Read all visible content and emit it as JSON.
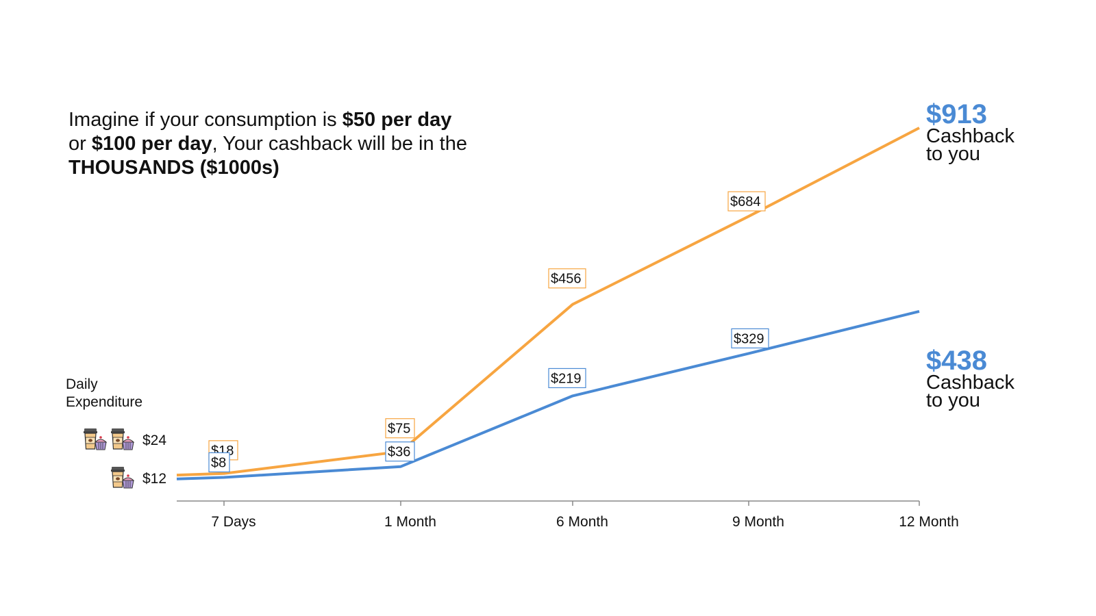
{
  "headline": {
    "line1_pre": "Imagine if your consumption is ",
    "line1_bold": "$50 per day",
    "line2_pre": "or ",
    "line2_bold": "$100 per day",
    "line2_post": ", Your cashback will be in the",
    "line3_bold": "THOUSANDS ($1000s)"
  },
  "daily_expenditure_label": "Daily Expenditure",
  "expenditure_levels": [
    {
      "label": "$24",
      "icons": 2,
      "icon": "coffee-cupcake-icon"
    },
    {
      "label": "$12",
      "icons": 1,
      "icon": "coffee-cupcake-icon"
    }
  ],
  "end_labels": {
    "high": {
      "amount": "$913",
      "text_line1": "Cashback",
      "text_line2": "to you"
    },
    "low": {
      "amount": "$438",
      "text_line1": "Cashback",
      "text_line2": "to you"
    }
  },
  "colors": {
    "high_series": "#f7a541",
    "low_series": "#4a8ad4",
    "axis": "#888888",
    "accent_amount": "#4a8ad4"
  },
  "chart_data": {
    "type": "line",
    "categories": [
      "7 Days",
      "1 Month",
      "6 Month",
      "9 Month",
      "12 Month"
    ],
    "series": [
      {
        "values": [
          18,
          75,
          456,
          684,
          913
        ],
        "labels": [
          "$18",
          "$75",
          "$456",
          "$684",
          "$913"
        ],
        "color": "#f7a541"
      },
      {
        "values": [
          8,
          36,
          219,
          329,
          438
        ],
        "labels": [
          "$8",
          "$36",
          "$219",
          "$329",
          "$438"
        ],
        "color": "#4a8ad4"
      }
    ],
    "ylim": [
      0,
      950
    ],
    "grid": false,
    "title": "",
    "xlabel": "",
    "ylabel": ""
  }
}
